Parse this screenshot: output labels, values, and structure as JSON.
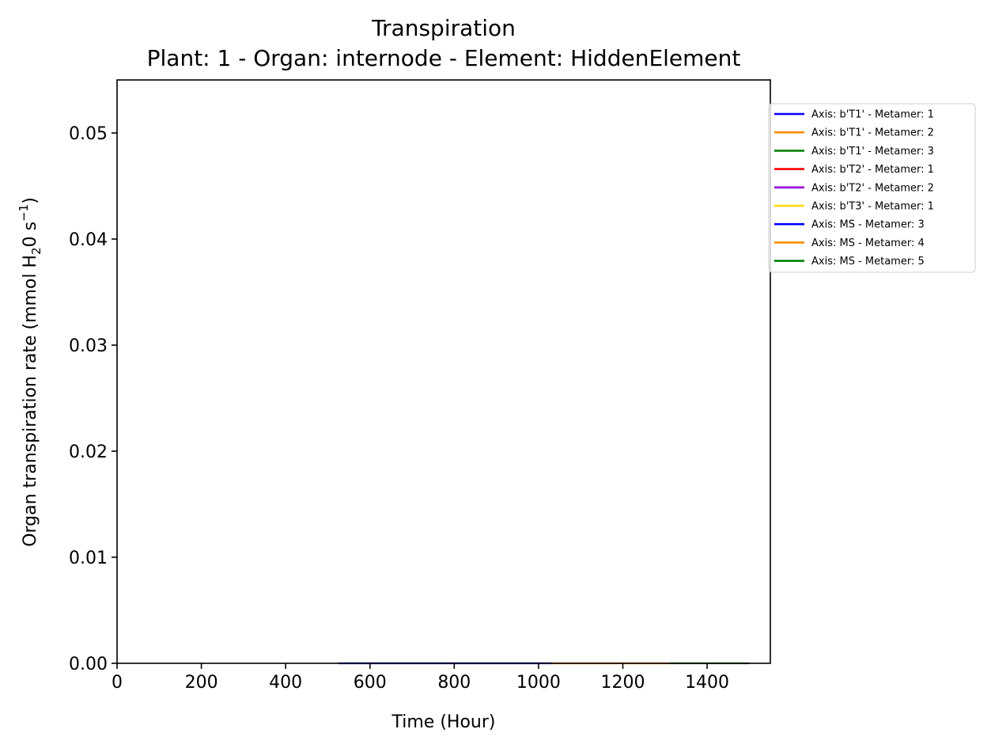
{
  "chart_data": {
    "type": "line",
    "title_line1": "Transpiration",
    "title_line2": "Plant: 1 - Organ: internode - Element: HiddenElement",
    "xlabel": "Time (Hour)",
    "ylabel": {
      "prefix": "Organ transpiration rate (mmol H",
      "sub": "2",
      "mid": "0 s",
      "sup": "−1",
      "suffix": ")"
    },
    "xlim": [
      0,
      1550
    ],
    "ylim": [
      0,
      0.055
    ],
    "x_ticks": [
      0,
      200,
      400,
      600,
      800,
      1000,
      1200,
      1400
    ],
    "x_tick_labels": [
      "0",
      "200",
      "400",
      "600",
      "800",
      "1000",
      "1200",
      "1400"
    ],
    "y_ticks": [
      0.0,
      0.01,
      0.02,
      0.03,
      0.04,
      0.05
    ],
    "y_tick_labels": [
      "0.00",
      "0.01",
      "0.02",
      "0.03",
      "0.04",
      "0.05"
    ],
    "grid": false,
    "legend_position": "outside-right-top",
    "series": [
      {
        "name": "Axis: b'T1' - Metamer: 1",
        "color": "#0000ff",
        "x": [],
        "y": []
      },
      {
        "name": "Axis: b'T1' - Metamer: 2",
        "color": "#ff8c00",
        "x": [],
        "y": []
      },
      {
        "name": "Axis: b'T1' - Metamer: 3",
        "color": "#008000",
        "x": [],
        "y": []
      },
      {
        "name": "Axis: b'T2' - Metamer: 1",
        "color": "#ff0000",
        "x": [],
        "y": []
      },
      {
        "name": "Axis: b'T2' - Metamer: 2",
        "color": "#9400d3",
        "x": [],
        "y": []
      },
      {
        "name": "Axis: b'T3' - Metamer: 1",
        "color": "#ffd700",
        "x": [],
        "y": []
      },
      {
        "name": "Axis: MS - Metamer: 3",
        "color": "#0000ff",
        "x": [
          525,
          1030
        ],
        "y": [
          0,
          0
        ]
      },
      {
        "name": "Axis: MS - Metamer: 4",
        "color": "#ff8c00",
        "x": [
          1030,
          1313
        ],
        "y": [
          0,
          0
        ]
      },
      {
        "name": "Axis: MS - Metamer: 5",
        "color": "#008000",
        "x": [
          1313,
          1500
        ],
        "y": [
          0,
          0
        ]
      }
    ]
  }
}
